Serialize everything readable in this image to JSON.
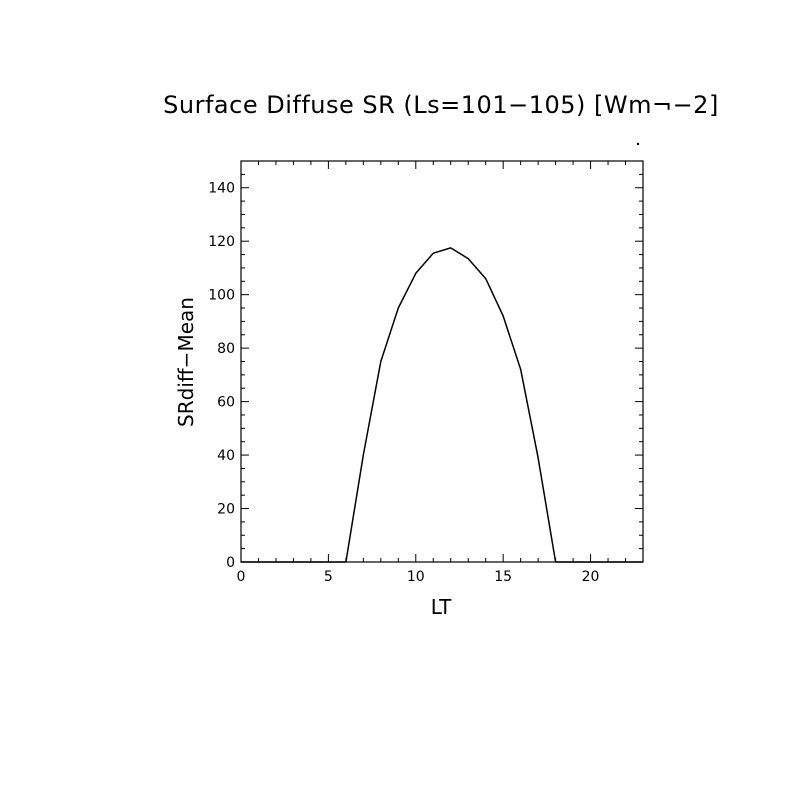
{
  "chart_data": {
    "type": "line",
    "title": "Surface Diffuse SR (Ls=101−105) [Wm¬−2]",
    "xlabel": "LT",
    "ylabel": "SRdiff−Mean",
    "xlim": [
      0,
      23
    ],
    "ylim": [
      0,
      150
    ],
    "x_ticks": [
      0,
      5,
      10,
      15,
      20
    ],
    "y_ticks": [
      0,
      20,
      40,
      60,
      80,
      100,
      120,
      140
    ],
    "grid": false,
    "legend": "none",
    "series": [
      {
        "x": [
          0,
          1,
          2,
          3,
          4,
          5,
          6,
          7,
          8,
          9,
          10,
          11,
          12,
          13,
          14,
          15,
          16,
          17,
          18,
          19,
          20,
          21,
          22,
          23
        ],
        "y": [
          0,
          0,
          0,
          0,
          0,
          0,
          0,
          40,
          75,
          95,
          108,
          115.5,
          117.5,
          113.5,
          106,
          92,
          72,
          39,
          0,
          0,
          0,
          0,
          0,
          0
        ]
      }
    ],
    "line_color": "#000000"
  }
}
